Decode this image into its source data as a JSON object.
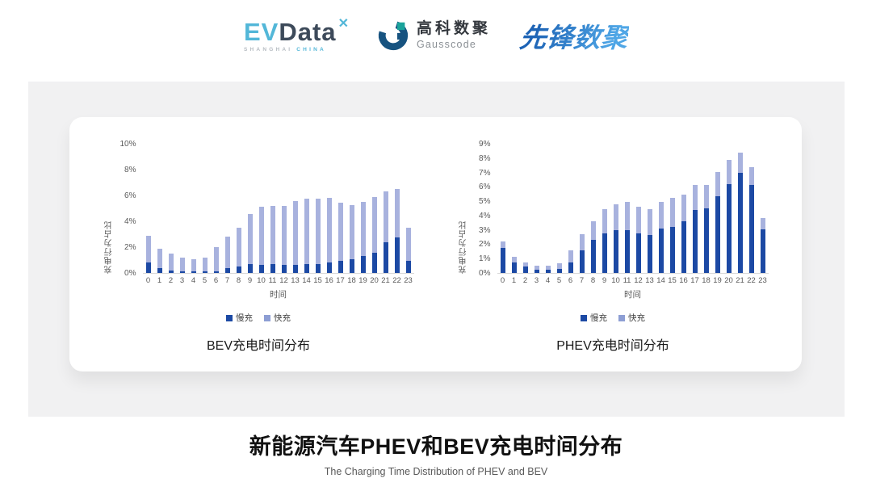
{
  "header": {
    "evdata": {
      "ev": "EV",
      "data": "Data",
      "x_mark": "✕",
      "subtext_left": "SHANGHAI ",
      "subtext_right": "CHINA"
    },
    "gausscode": {
      "cn": "高科数聚",
      "en": "Gausscode"
    },
    "xianfeng": {
      "text": "先锋数聚"
    }
  },
  "footer": {
    "title": "新能源汽车PHEV和BEV充电时间分布",
    "subtitle": "The Charging Time Distribution of PHEV and BEV"
  },
  "colors": {
    "slow": "#1c49a4",
    "fast": "#a8b2de",
    "legend_fast": "#8d9ed4",
    "brand_cyan": "#53b7d8",
    "brand_navy": "#175380",
    "brand_teal": "#1aa39b"
  },
  "chart_data": [
    {
      "type": "bar",
      "stacked": true,
      "title": "BEV充电时间分布",
      "xlabel": "时间",
      "ylabel": "充电行为占比",
      "ymax": 10,
      "ylim": [
        0,
        10
      ],
      "grid": false,
      "legend_position": "bottom",
      "y_ticks": [
        "0%",
        "2%",
        "4%",
        "6%",
        "8%",
        "10%"
      ],
      "categories": [
        "0",
        "1",
        "2",
        "3",
        "4",
        "5",
        "6",
        "7",
        "8",
        "9",
        "10",
        "11",
        "12",
        "13",
        "14",
        "15",
        "16",
        "17",
        "18",
        "19",
        "20",
        "21",
        "22",
        "23"
      ],
      "series": [
        {
          "name": "慢充",
          "color_key": "slow",
          "values": [
            0.8,
            0.35,
            0.2,
            0.1,
            0.1,
            0.1,
            0.15,
            0.35,
            0.5,
            0.7,
            0.65,
            0.7,
            0.6,
            0.65,
            0.7,
            0.7,
            0.8,
            0.95,
            1.1,
            1.3,
            1.6,
            2.4,
            2.75,
            0.95
          ]
        },
        {
          "name": "快充",
          "color_key": "fast",
          "legend_key": "legend_fast",
          "values": [
            2.1,
            1.55,
            1.3,
            1.1,
            1.0,
            1.1,
            1.85,
            2.45,
            3.05,
            3.9,
            4.5,
            4.5,
            4.6,
            4.95,
            5.1,
            5.1,
            5.05,
            4.5,
            4.2,
            4.25,
            4.3,
            3.95,
            3.8,
            2.55
          ]
        }
      ]
    },
    {
      "type": "bar",
      "stacked": true,
      "title": "PHEV充电时间分布",
      "xlabel": "时间",
      "ylabel": "充电行为占比",
      "ymax": 9,
      "ylim": [
        0,
        9
      ],
      "grid": false,
      "legend_position": "bottom",
      "y_ticks": [
        "0%",
        "1%",
        "2%",
        "3%",
        "4%",
        "5%",
        "6%",
        "7%",
        "8%",
        "9%"
      ],
      "categories": [
        "0",
        "1",
        "2",
        "3",
        "4",
        "5",
        "6",
        "7",
        "8",
        "9",
        "10",
        "11",
        "12",
        "13",
        "14",
        "15",
        "16",
        "17",
        "18",
        "19",
        "20",
        "21",
        "22",
        "23"
      ],
      "series": [
        {
          "name": "慢充",
          "color_key": "slow",
          "values": [
            1.75,
            0.75,
            0.45,
            0.25,
            0.25,
            0.3,
            0.75,
            1.6,
            2.3,
            2.8,
            3.0,
            3.0,
            2.8,
            2.65,
            3.1,
            3.25,
            3.6,
            4.4,
            4.55,
            5.35,
            6.2,
            7.0,
            6.15,
            3.05
          ]
        },
        {
          "name": "快充",
          "color_key": "fast",
          "legend_key": "legend_fast",
          "values": [
            0.45,
            0.4,
            0.3,
            0.25,
            0.25,
            0.4,
            0.85,
            1.1,
            1.35,
            1.7,
            1.8,
            2.0,
            1.85,
            1.85,
            1.9,
            2.0,
            1.9,
            1.75,
            1.6,
            1.75,
            1.75,
            1.45,
            1.25,
            0.8
          ]
        }
      ]
    }
  ]
}
